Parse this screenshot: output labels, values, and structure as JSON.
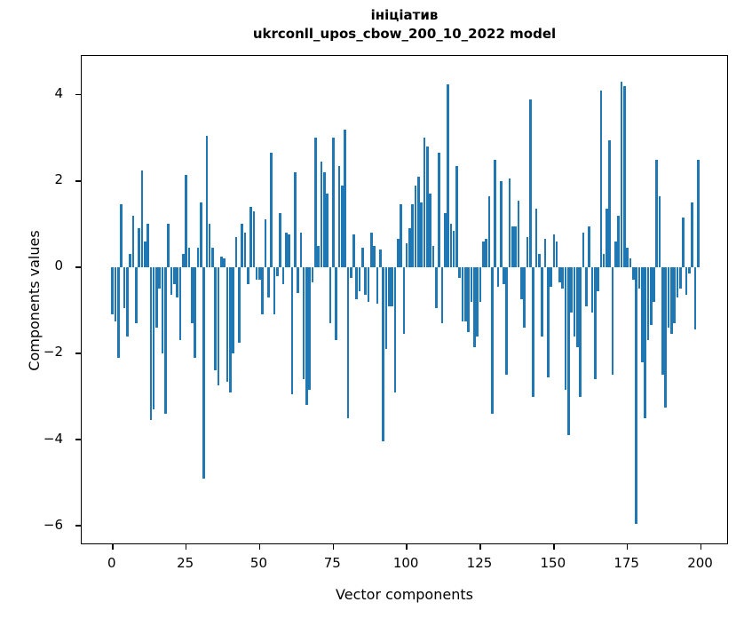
{
  "figure": {
    "title_line1": "ініціатив",
    "title_line2": "ukrconll_upos_cbow_200_10_2022 model"
  },
  "chart_data": {
    "type": "bar",
    "title": "ініціатив — ukrconll_upos_cbow_200_10_2022 model",
    "xlabel": "Vector components",
    "ylabel": "Components values",
    "x_start": 0,
    "x_end": 199,
    "xlim": [
      -10.5,
      209.5
    ],
    "ylim": [
      -6.45,
      4.9
    ],
    "grid": false,
    "legend": "none",
    "bar_color": "#1f77b4",
    "x_tick_values": [
      0,
      25,
      50,
      75,
      100,
      125,
      150,
      175,
      200
    ],
    "x_tick_labels": [
      "0",
      "25",
      "50",
      "75",
      "100",
      "125",
      "150",
      "175",
      "200"
    ],
    "y_tick_values": [
      4,
      2,
      0,
      -2,
      -4,
      -6
    ],
    "y_tick_labels": [
      "4",
      "2",
      "0",
      "−2",
      "−4",
      "−6"
    ],
    "values": [
      -1.1,
      -1.25,
      -2.1,
      1.45,
      -0.95,
      -1.6,
      0.3,
      1.2,
      -1.3,
      0.9,
      2.25,
      0.6,
      1.0,
      -3.55,
      -3.3,
      -1.4,
      -0.5,
      -2.0,
      -3.4,
      1.0,
      -0.65,
      -0.4,
      -0.7,
      -1.7,
      0.3,
      2.15,
      0.45,
      -1.3,
      -2.1,
      0.45,
      1.5,
      -4.9,
      3.05,
      1.0,
      0.45,
      -2.4,
      -2.75,
      0.25,
      0.2,
      -2.65,
      -2.9,
      -2.0,
      0.7,
      -1.75,
      1.0,
      0.8,
      -0.4,
      1.4,
      1.3,
      -0.3,
      -0.3,
      -1.1,
      1.1,
      -0.7,
      2.65,
      -1.1,
      -0.2,
      1.25,
      -0.4,
      0.8,
      0.75,
      -2.95,
      2.2,
      -0.6,
      0.8,
      -2.6,
      -3.2,
      -2.85,
      -0.35,
      3.0,
      0.5,
      2.45,
      2.2,
      1.7,
      -1.3,
      3.0,
      -1.7,
      2.35,
      1.9,
      3.2,
      -3.5,
      -0.25,
      0.75,
      -0.75,
      -0.55,
      0.45,
      -0.65,
      -0.8,
      0.8,
      0.5,
      -0.85,
      0.4,
      -4.05,
      -1.9,
      -0.9,
      -0.9,
      -2.9,
      0.65,
      1.45,
      -1.55,
      0.55,
      0.9,
      1.45,
      1.9,
      2.1,
      1.5,
      3.0,
      2.8,
      1.7,
      0.5,
      -0.95,
      2.65,
      -1.3,
      1.25,
      4.25,
      1.0,
      0.85,
      2.35,
      -0.25,
      -1.25,
      -1.25,
      -1.5,
      -0.8,
      -1.85,
      -1.6,
      -0.8,
      0.6,
      0.65,
      1.65,
      -3.4,
      2.5,
      -0.45,
      2.0,
      -0.4,
      -2.5,
      2.05,
      0.95,
      0.95,
      1.55,
      -0.75,
      -1.4,
      0.7,
      3.9,
      -3.0,
      1.35,
      0.3,
      -1.6,
      0.65,
      -2.55,
      -0.45,
      0.75,
      0.6,
      -0.35,
      -0.5,
      -2.85,
      -3.9,
      -1.05,
      -1.6,
      -1.85,
      -3.0,
      0.8,
      -0.9,
      0.95,
      -1.05,
      -2.6,
      -0.55,
      4.1,
      0.3,
      1.35,
      2.95,
      -2.5,
      0.6,
      1.2,
      4.3,
      4.2,
      0.45,
      0.2,
      -0.3,
      -5.95,
      -0.5,
      -2.2,
      -3.5,
      -1.7,
      -1.35,
      -0.8,
      2.5,
      1.65,
      -2.5,
      -3.25,
      -1.4,
      -1.55,
      -1.3,
      -0.7,
      -0.5,
      1.15,
      -0.65,
      -0.15,
      1.5,
      -1.45,
      2.5
    ]
  }
}
